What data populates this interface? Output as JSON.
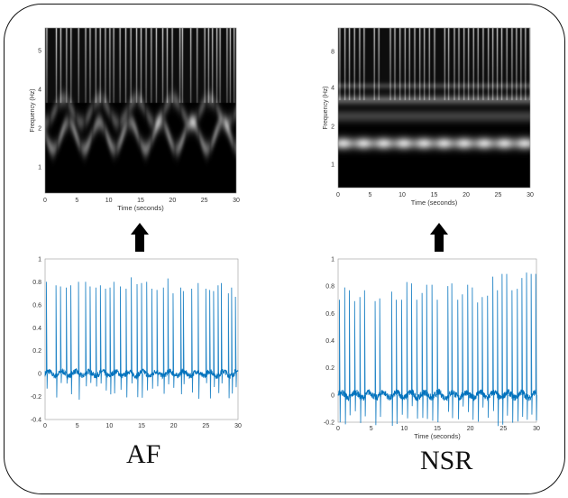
{
  "labels": {
    "af": "AF",
    "nsr": "NSR"
  },
  "chart_data": [
    {
      "type": "heatmap",
      "panel": "AF spectrogram",
      "xlabel": "Time (seconds)",
      "ylabel": "Frequency (Hz)",
      "xlim": [
        0,
        30
      ],
      "xticks": [
        "0",
        "5",
        "10",
        "15",
        "20",
        "25",
        "30"
      ],
      "yticks": [
        "1",
        "2",
        "4",
        "5"
      ],
      "yscale": "log",
      "colormap": "gray"
    },
    {
      "type": "heatmap",
      "panel": "NSR spectrogram",
      "xlabel": "Time (seconds)",
      "ylabel": "Frequency (Hz)",
      "xlim": [
        0,
        30
      ],
      "xticks": [
        "0",
        "5",
        "10",
        "15",
        "20",
        "25",
        "30"
      ],
      "yticks": [
        "1",
        "2",
        "4",
        "8"
      ],
      "yscale": "log",
      "colormap": "gray"
    },
    {
      "type": "line",
      "panel": "AF ECG",
      "xlabel": "",
      "xlim": [
        0,
        30
      ],
      "ylim": [
        -0.4,
        1
      ],
      "xticks": [
        "0",
        "5",
        "10",
        "15",
        "20",
        "25",
        "30"
      ],
      "yticks": [
        "-0.4",
        "-0.2",
        "0",
        "0.2",
        "0.4",
        "0.6",
        "0.8",
        "1"
      ],
      "color": "#0072bd",
      "beat_times": [
        0.2,
        1.7,
        2.4,
        3.3,
        4.0,
        5.2,
        6.3,
        7.0,
        7.9,
        8.6,
        9.4,
        10.1,
        10.7,
        11.7,
        12.6,
        13.4,
        14.3,
        15.0,
        15.8,
        16.6,
        17.4,
        18.4,
        19.1,
        19.9,
        21.1,
        21.5,
        22.8,
        23.8,
        25.0,
        25.6,
        26.2,
        26.9,
        27.4,
        28.5,
        29.0,
        29.6
      ],
      "beat_peaks": [
        0.8,
        0.77,
        0.76,
        0.75,
        0.77,
        0.8,
        0.8,
        0.76,
        0.75,
        0.77,
        0.74,
        0.75,
        0.8,
        0.76,
        0.74,
        0.84,
        0.78,
        0.79,
        0.8,
        0.74,
        0.73,
        0.75,
        0.83,
        0.7,
        0.75,
        0.72,
        0.74,
        0.79,
        0.74,
        0.73,
        0.72,
        0.77,
        0.79,
        0.7,
        0.75,
        0.67
      ]
    },
    {
      "type": "line",
      "panel": "NSR ECG",
      "xlabel": "Time (seconds)",
      "xlim": [
        0,
        30
      ],
      "ylim": [
        -0.2,
        1
      ],
      "xticks": [
        "0",
        "5",
        "10",
        "15",
        "20",
        "25",
        "30"
      ],
      "yticks": [
        "-0.2",
        "0",
        "0.2",
        "0.4",
        "0.6",
        "0.8",
        "1"
      ],
      "color": "#0072bd",
      "beat_times": [
        0.2,
        1.0,
        1.7,
        2.5,
        3.3,
        4.0,
        5.6,
        6.3,
        8.1,
        8.8,
        9.6,
        10.4,
        11.1,
        11.9,
        12.7,
        13.4,
        14.2,
        15.0,
        16.6,
        17.2,
        18.1,
        18.8,
        19.6,
        20.3,
        21.1,
        21.8,
        22.6,
        23.4,
        24.1,
        24.8,
        25.5,
        26.3,
        27.1,
        27.8,
        28.5,
        29.2,
        29.9
      ],
      "beat_peaks": [
        0.7,
        0.79,
        0.77,
        0.69,
        0.72,
        0.77,
        0.69,
        0.71,
        0.76,
        0.7,
        0.7,
        0.83,
        0.82,
        0.7,
        0.75,
        0.81,
        0.81,
        0.7,
        0.8,
        0.82,
        0.7,
        0.74,
        0.81,
        0.79,
        0.68,
        0.72,
        0.73,
        0.87,
        0.77,
        0.89,
        0.89,
        0.77,
        0.78,
        0.86,
        0.9,
        0.89,
        0.89
      ]
    }
  ]
}
